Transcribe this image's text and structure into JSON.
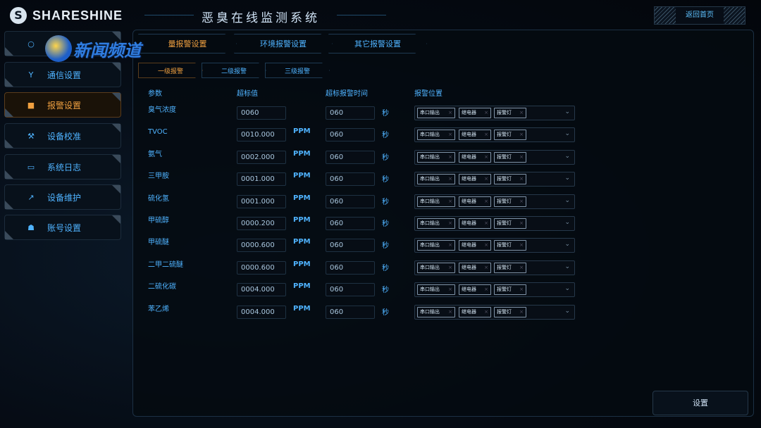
{
  "header": {
    "brand": "SHARESHINE",
    "title": "恶臭在线监测系统",
    "home_button": "返回首页"
  },
  "watermark": "新闻频道",
  "sidebar": {
    "items": [
      {
        "label": "",
        "icon": "circle-icon",
        "active": false
      },
      {
        "label": "通信设置",
        "icon": "antenna-icon",
        "active": false
      },
      {
        "label": "报警设置",
        "icon": "alarm-icon",
        "active": true
      },
      {
        "label": "设备校准",
        "icon": "wrench-icon",
        "active": false
      },
      {
        "label": "系统日志",
        "icon": "log-icon",
        "active": false
      },
      {
        "label": "设备维护",
        "icon": "hammer-icon",
        "active": false
      },
      {
        "label": "账号设置",
        "icon": "user-icon",
        "active": false
      }
    ]
  },
  "tabs": [
    {
      "label": "量报警设置",
      "active": true
    },
    {
      "label": "环境报警设置",
      "active": false
    },
    {
      "label": "其它报警设置",
      "active": false
    }
  ],
  "subtabs": [
    {
      "label": "一级报警",
      "active": true
    },
    {
      "label": "二级报警",
      "active": false
    },
    {
      "label": "三级报警",
      "active": false
    }
  ],
  "table": {
    "headers": {
      "param": "参数",
      "threshold": "超标值",
      "time": "超标报警时间",
      "location": "报警位置"
    },
    "second_label": "秒",
    "tags": [
      "串口输出",
      "继电器",
      "报警灯"
    ],
    "rows": [
      {
        "name": "臭气浓度",
        "value": "0060",
        "unit": "",
        "time": "060"
      },
      {
        "name": "TVOC",
        "value": "0010.000",
        "unit": "PPM",
        "time": "060"
      },
      {
        "name": "氨气",
        "value": "0002.000",
        "unit": "PPM",
        "time": "060"
      },
      {
        "name": "三甲胺",
        "value": "0001.000",
        "unit": "PPM",
        "time": "060"
      },
      {
        "name": "硫化氢",
        "value": "0001.000",
        "unit": "PPM",
        "time": "060"
      },
      {
        "name": "甲硫醇",
        "value": "0000.200",
        "unit": "PPM",
        "time": "060"
      },
      {
        "name": "甲硫醚",
        "value": "0000.600",
        "unit": "PPM",
        "time": "060"
      },
      {
        "name": "二甲二硫醚",
        "value": "0000.600",
        "unit": "PPM",
        "time": "060"
      },
      {
        "name": "二硫化碳",
        "value": "0004.000",
        "unit": "PPM",
        "time": "060"
      },
      {
        "name": "苯乙烯",
        "value": "0004.000",
        "unit": "PPM",
        "time": "060"
      }
    ]
  },
  "set_button": "设置"
}
